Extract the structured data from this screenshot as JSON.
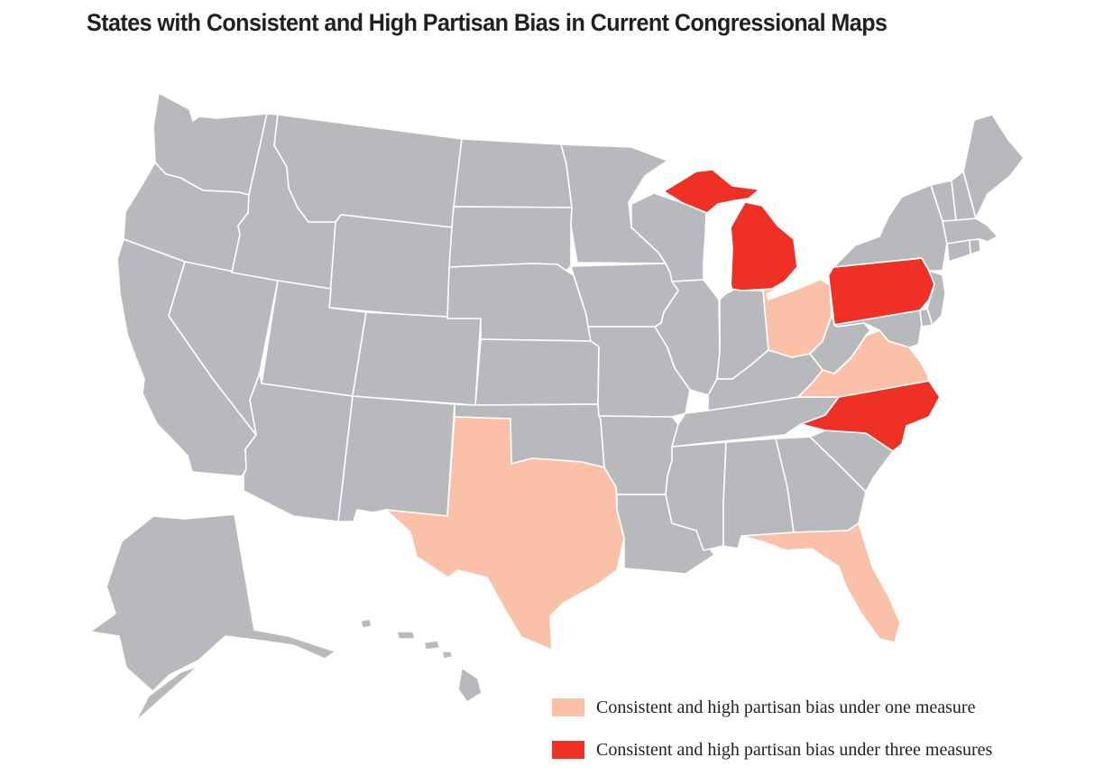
{
  "title": "States with Consistent and High Partisan Bias in Current Congressional Maps",
  "colors": {
    "neutral": "#b8b9bd",
    "one_measure": "#fbc0a8",
    "three_measures": "#ee3124",
    "border": "#ffffff"
  },
  "legend": [
    {
      "key": "one_measure",
      "label": "Consistent and high partisan bias under one measure"
    },
    {
      "key": "three_measures",
      "label": "Consistent and high partisan bias under three measures"
    }
  ],
  "states": {
    "Washington": "neutral",
    "Oregon": "neutral",
    "California": "neutral",
    "Nevada": "neutral",
    "Idaho": "neutral",
    "Montana": "neutral",
    "Wyoming": "neutral",
    "Utah": "neutral",
    "Arizona": "neutral",
    "Colorado": "neutral",
    "New Mexico": "neutral",
    "North Dakota": "neutral",
    "South Dakota": "neutral",
    "Nebraska": "neutral",
    "Kansas": "neutral",
    "Oklahoma": "neutral",
    "Texas": "one_measure",
    "Minnesota": "neutral",
    "Iowa": "neutral",
    "Missouri": "neutral",
    "Arkansas": "neutral",
    "Louisiana": "neutral",
    "Wisconsin": "neutral",
    "Illinois": "neutral",
    "Michigan": "three_measures",
    "Indiana": "neutral",
    "Ohio": "one_measure",
    "Kentucky": "neutral",
    "Tennessee": "neutral",
    "Mississippi": "neutral",
    "Alabama": "neutral",
    "Georgia": "neutral",
    "Florida": "one_measure",
    "South Carolina": "neutral",
    "North Carolina": "three_measures",
    "Virginia": "one_measure",
    "West Virginia": "neutral",
    "Pennsylvania": "three_measures",
    "New York": "neutral",
    "Maryland": "neutral",
    "Delaware": "neutral",
    "New Jersey": "neutral",
    "Connecticut": "neutral",
    "Rhode Island": "neutral",
    "Massachusetts": "neutral",
    "Vermont": "neutral",
    "New Hampshire": "neutral",
    "Maine": "neutral",
    "Alaska": "neutral",
    "Hawaii": "neutral"
  }
}
